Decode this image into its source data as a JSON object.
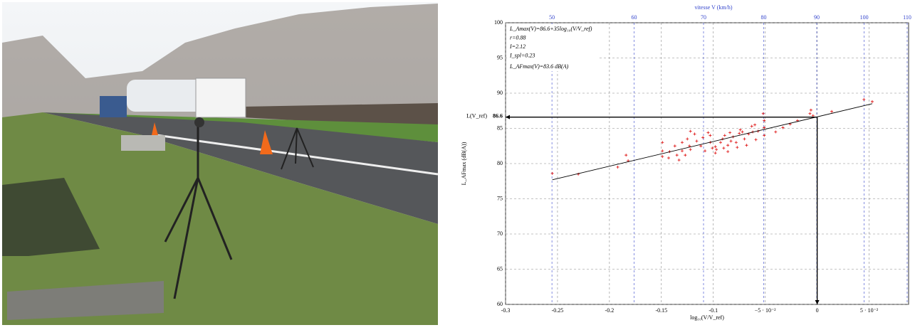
{
  "chart_data": {
    "type": "scatter",
    "x2label": "vitesse V (km/h)",
    "xlabel": "log₁₀(V/V_ref)",
    "ylabel": "L_AFmax (dB(A))",
    "xlim": [
      -0.3,
      0.088
    ],
    "ylim": [
      60,
      100
    ],
    "x2lim": [
      45.11,
      110.35
    ],
    "x2scale": "log",
    "xticks": [
      -0.3,
      -0.25,
      -0.2,
      -0.15,
      -0.1,
      {
        "value": -0.05,
        "label": "−5 · 10⁻²"
      },
      0,
      {
        "value": 0.05,
        "label": "5 · 10⁻²"
      }
    ],
    "yticks": [
      60,
      65,
      70,
      75,
      80,
      85,
      90,
      95,
      100
    ],
    "x2ticks": [
      50,
      60,
      70,
      80,
      90,
      100,
      110
    ],
    "grid": true,
    "grid_color": "#888888",
    "x2_grid_color": "#3344cc",
    "annotations": [
      "L_Amax(V)=86.6+35log₁₀(V/V_ref)",
      "r=0.88",
      "I=2.12",
      "I_spl=0.23",
      "L_AFmax(V)=83.6 dB(A)"
    ],
    "reference": {
      "label": "L(V_ref)",
      "value": 86.6,
      "x": 0
    },
    "series": [
      {
        "marker": "plus",
        "color": "#e02020",
        "x": [
          -0.255,
          -0.23,
          -0.192,
          -0.184,
          -0.182,
          -0.149,
          -0.149,
          -0.149,
          -0.143,
          -0.142,
          -0.137,
          -0.135,
          -0.133,
          -0.13,
          -0.13,
          -0.127,
          -0.125,
          -0.123,
          -0.122,
          -0.122,
          -0.118,
          -0.116,
          -0.112,
          -0.11,
          -0.108,
          -0.105,
          -0.103,
          -0.103,
          -0.101,
          -0.098,
          -0.098,
          -0.097,
          -0.093,
          -0.091,
          -0.09,
          -0.089,
          -0.086,
          -0.086,
          -0.084,
          -0.083,
          -0.081,
          -0.078,
          -0.077,
          -0.075,
          -0.074,
          -0.072,
          -0.07,
          -0.068,
          -0.066,
          -0.063,
          -0.062,
          -0.06,
          -0.059,
          -0.057,
          -0.052,
          -0.051,
          -0.051,
          -0.051,
          -0.04,
          -0.033,
          -0.026,
          -0.019,
          -0.007,
          -0.006,
          -0.004,
          0.014,
          0.045,
          0.053
        ],
        "values": [
          78.6,
          78.5,
          79.5,
          81.2,
          80.4,
          83.0,
          81.8,
          81.0,
          80.8,
          81.7,
          82.5,
          81.2,
          80.5,
          83.0,
          81.8,
          81.2,
          83.5,
          82.5,
          82.0,
          84.6,
          84.2,
          83.2,
          82.5,
          83.7,
          81.8,
          84.4,
          83.0,
          84.0,
          82.2,
          81.5,
          82.4,
          82.0,
          83.0,
          83.5,
          82.2,
          84.0,
          82.6,
          81.7,
          84.4,
          83.2,
          83.8,
          83.0,
          82.3,
          84.3,
          84.8,
          84.5,
          83.5,
          82.6,
          84.2,
          85.3,
          84.5,
          85.5,
          83.4,
          84.6,
          87.1,
          84.0,
          85.1,
          86.1,
          84.5,
          85.1,
          85.6,
          86.1,
          87.1,
          87.6,
          86.8,
          87.4,
          89.1,
          88.8
        ]
      },
      {
        "marker": "line",
        "color": "#000000",
        "x": [
          -0.255,
          0.053
        ],
        "values": [
          77.7,
          88.5
        ]
      }
    ]
  }
}
